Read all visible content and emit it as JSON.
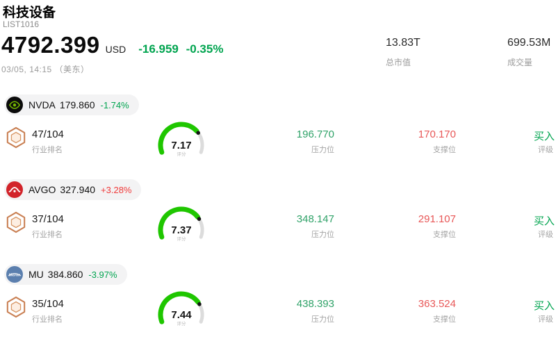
{
  "header": {
    "title": "科技设备",
    "list_id": "LIST1016",
    "price": "4792.399",
    "currency": "USD",
    "change": "-16.959 -0.35%",
    "datetime": "03/05, 14:15 （美东）",
    "stats": {
      "market_cap_value": "13.83T",
      "market_cap_label": "总市值",
      "volume_value": "699.53M",
      "volume_label": "成交量"
    }
  },
  "colors": {
    "up_red": "#f03b3b",
    "down_green": "#00a44f",
    "resistance_green": "#2fa268",
    "support_red": "#e85757",
    "gauge_green": "#1fc600",
    "gauge_track": "#dcdcdc"
  },
  "gauge": {
    "max": 10
  },
  "stocks": [
    {
      "symbol": "NVDA",
      "price": "179.860",
      "change": "-1.74%",
      "trend": "down",
      "logo": "nvidia-logo",
      "rank": "47/104",
      "rank_label": "行业排名",
      "score": 7.17,
      "score_display": "7.17",
      "score_label": "评分",
      "resistance": "196.770",
      "resistance_label": "压力位",
      "support": "170.170",
      "support_label": "支撑位",
      "rating": "买入",
      "rating_label": "评级"
    },
    {
      "symbol": "AVGO",
      "price": "327.940",
      "change": "+3.28%",
      "trend": "up",
      "logo": "broadcom-logo",
      "rank": "37/104",
      "rank_label": "行业排名",
      "score": 7.37,
      "score_display": "7.37",
      "score_label": "评分",
      "resistance": "348.147",
      "resistance_label": "压力位",
      "support": "291.107",
      "support_label": "支撑位",
      "rating": "买入",
      "rating_label": "评级"
    },
    {
      "symbol": "MU",
      "price": "384.860",
      "change": "-3.97%",
      "trend": "down",
      "logo": "micron-logo",
      "rank": "35/104",
      "rank_label": "行业排名",
      "score": 7.44,
      "score_display": "7.44",
      "score_label": "评分",
      "resistance": "438.393",
      "resistance_label": "压力位",
      "support": "363.524",
      "support_label": "支撑位",
      "rating": "买入",
      "rating_label": "评级"
    }
  ]
}
